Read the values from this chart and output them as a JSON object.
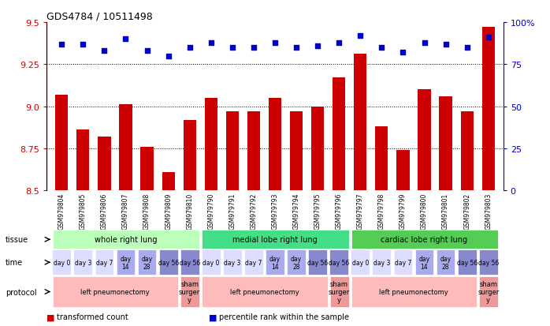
{
  "title": "GDS4784 / 10511498",
  "samples": [
    "GSM979804",
    "GSM979805",
    "GSM979806",
    "GSM979807",
    "GSM979808",
    "GSM979809",
    "GSM979810",
    "GSM979790",
    "GSM979791",
    "GSM979792",
    "GSM979793",
    "GSM979794",
    "GSM979795",
    "GSM979796",
    "GSM979797",
    "GSM979798",
    "GSM979799",
    "GSM979800",
    "GSM979801",
    "GSM979802",
    "GSM979803"
  ],
  "red_values": [
    9.07,
    8.86,
    8.82,
    9.01,
    8.76,
    8.61,
    8.92,
    9.05,
    8.97,
    8.97,
    9.05,
    8.97,
    9.0,
    9.17,
    9.31,
    8.88,
    8.74,
    9.1,
    9.06,
    8.97,
    9.47
  ],
  "blue_values": [
    87,
    87,
    83,
    90,
    83,
    80,
    85,
    88,
    85,
    85,
    88,
    85,
    86,
    88,
    92,
    85,
    82,
    88,
    87,
    85,
    91
  ],
  "ylim_left": [
    8.5,
    9.5
  ],
  "ylim_right": [
    0,
    100
  ],
  "yticks_left": [
    8.5,
    8.75,
    9.0,
    9.25,
    9.5
  ],
  "yticks_right": [
    0,
    25,
    50,
    75,
    100
  ],
  "bar_color": "#cc0000",
  "dot_color": "#0000cc",
  "tissue_groups": [
    {
      "label": "whole right lung",
      "start": 0,
      "end": 6,
      "color": "#bbffbb"
    },
    {
      "label": "medial lobe right lung",
      "start": 7,
      "end": 13,
      "color": "#44dd88"
    },
    {
      "label": "cardiac lobe right lung",
      "start": 14,
      "end": 20,
      "color": "#55cc55"
    }
  ],
  "time_cells": [
    {
      "label": "day 0",
      "col": 0,
      "color": "#ddddff"
    },
    {
      "label": "day 3",
      "col": 1,
      "color": "#ddddff"
    },
    {
      "label": "day 7",
      "col": 2,
      "color": "#ddddff"
    },
    {
      "label": "day\n14",
      "col": 3,
      "color": "#aaaaee"
    },
    {
      "label": "day\n28",
      "col": 4,
      "color": "#aaaaee"
    },
    {
      "label": "day 56",
      "col": 5,
      "color": "#8888cc"
    },
    {
      "label": "day 56",
      "col": 6,
      "color": "#8888cc"
    },
    {
      "label": "day 0",
      "col": 7,
      "color": "#ddddff"
    },
    {
      "label": "day 3",
      "col": 8,
      "color": "#ddddff"
    },
    {
      "label": "day 7",
      "col": 9,
      "color": "#ddddff"
    },
    {
      "label": "day\n14",
      "col": 10,
      "color": "#aaaaee"
    },
    {
      "label": "day\n28",
      "col": 11,
      "color": "#aaaaee"
    },
    {
      "label": "day 56",
      "col": 12,
      "color": "#8888cc"
    },
    {
      "label": "day 56",
      "col": 13,
      "color": "#8888cc"
    },
    {
      "label": "day 0",
      "col": 14,
      "color": "#ddddff"
    },
    {
      "label": "day 3",
      "col": 15,
      "color": "#ddddff"
    },
    {
      "label": "day 7",
      "col": 16,
      "color": "#ddddff"
    },
    {
      "label": "day\n14",
      "col": 17,
      "color": "#aaaaee"
    },
    {
      "label": "day\n28",
      "col": 18,
      "color": "#aaaaee"
    },
    {
      "label": "day 56",
      "col": 19,
      "color": "#8888cc"
    },
    {
      "label": "day 56",
      "col": 20,
      "color": "#8888cc"
    }
  ],
  "protocol_groups": [
    {
      "label": "left pneumonectomy",
      "start": 0,
      "end": 5,
      "color": "#ffbbbb"
    },
    {
      "label": "sham\nsurger\ny",
      "start": 6,
      "end": 6,
      "color": "#ee9999"
    },
    {
      "label": "left pneumonectomy",
      "start": 7,
      "end": 12,
      "color": "#ffbbbb"
    },
    {
      "label": "sham\nsurger\ny",
      "start": 13,
      "end": 13,
      "color": "#ee9999"
    },
    {
      "label": "left pneumonectomy",
      "start": 14,
      "end": 19,
      "color": "#ffbbbb"
    },
    {
      "label": "sham\nsurger\ny",
      "start": 20,
      "end": 20,
      "color": "#ee9999"
    }
  ],
  "legend_items": [
    {
      "color": "#cc0000",
      "label": "transformed count"
    },
    {
      "color": "#0000cc",
      "label": "percentile rank within the sample"
    }
  ],
  "xtick_bg_color": "#dddddd"
}
